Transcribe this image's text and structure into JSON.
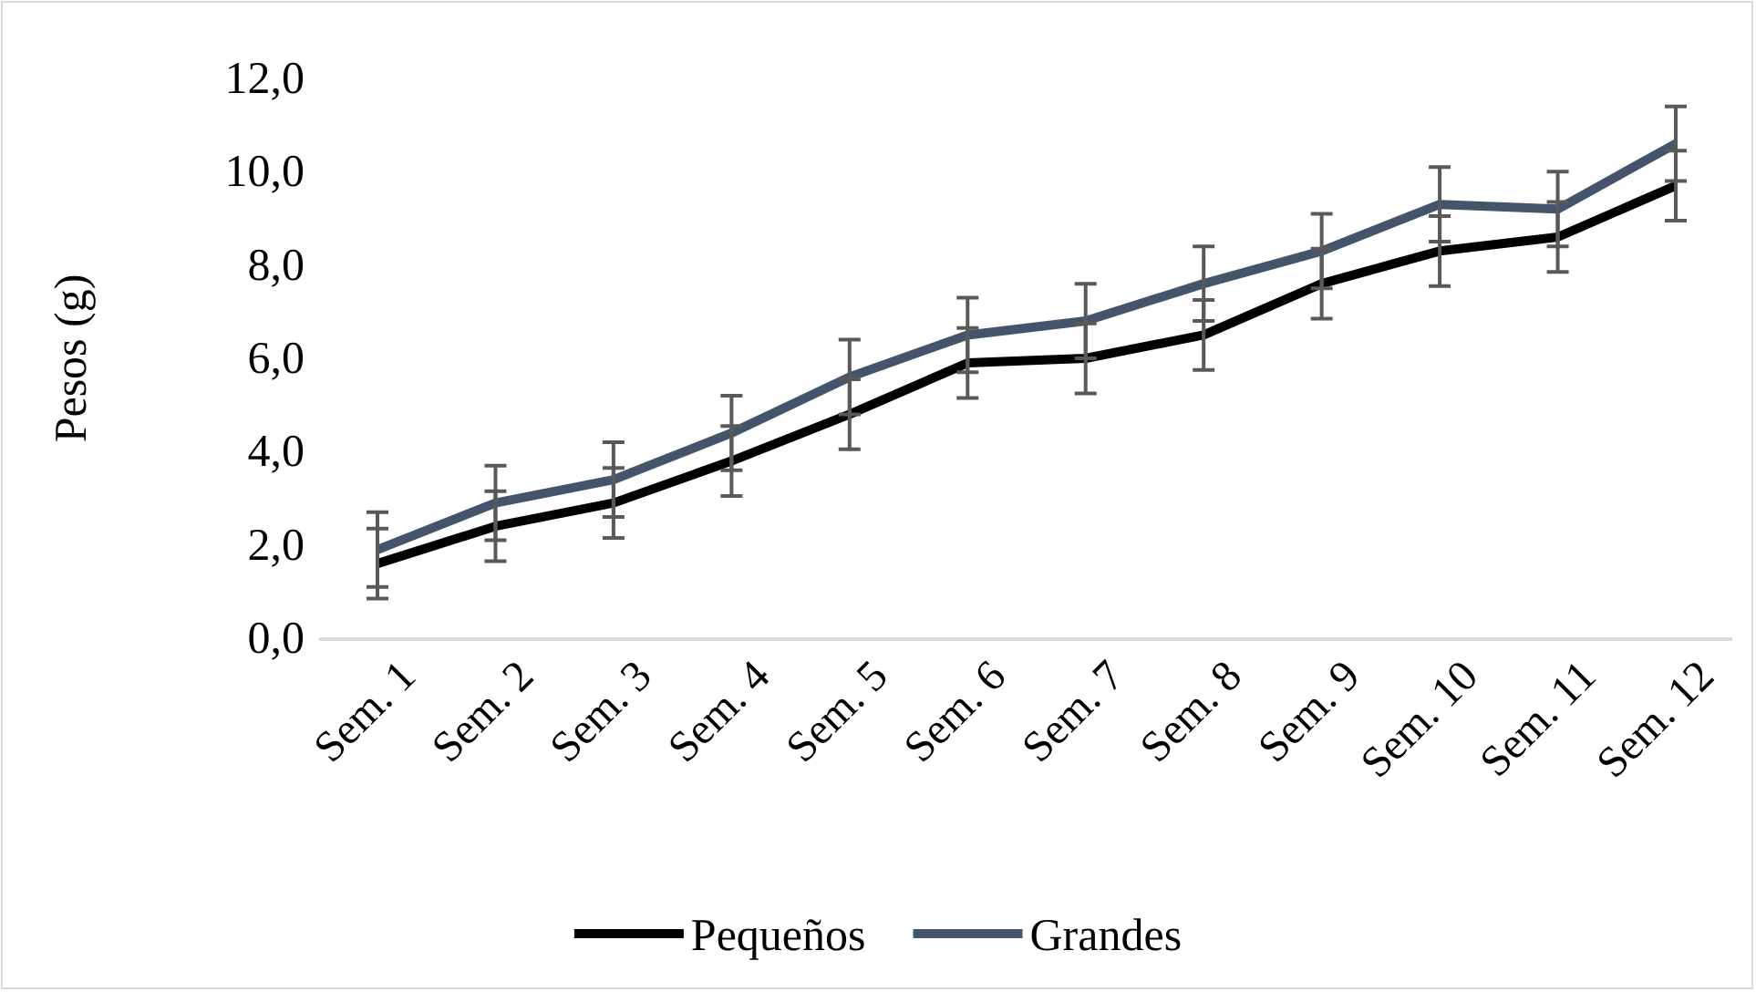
{
  "chart_data": {
    "type": "line",
    "ylabel": "Pesos (g)",
    "categories": [
      "Sem. 1",
      "Sem. 2",
      "Sem. 3",
      "Sem. 4",
      "Sem. 5",
      "Sem. 6",
      "Sem. 7",
      "Sem. 8",
      "Sem. 9",
      "Sem. 10",
      "Sem. 11",
      "Sem. 12"
    ],
    "series": [
      {
        "name": "Pequeños",
        "color": "#000000",
        "values": [
          1.6,
          2.4,
          2.9,
          3.8,
          4.8,
          5.9,
          6.0,
          6.5,
          7.6,
          8.3,
          8.6,
          9.7
        ],
        "errors": [
          0.75,
          0.75,
          0.75,
          0.75,
          0.75,
          0.75,
          0.75,
          0.75,
          0.75,
          0.75,
          0.75,
          0.75
        ]
      },
      {
        "name": "Grandes",
        "color": "#44546a",
        "values": [
          1.9,
          2.9,
          3.4,
          4.4,
          5.6,
          6.5,
          6.8,
          7.6,
          8.3,
          9.3,
          9.2,
          10.6
        ],
        "errors": [
          0.8,
          0.8,
          0.8,
          0.8,
          0.8,
          0.8,
          0.8,
          0.8,
          0.8,
          0.8,
          0.8,
          0.8
        ]
      }
    ],
    "ylim": [
      0,
      12
    ],
    "yticks": [
      {
        "value": 0,
        "label": "0,0"
      },
      {
        "value": 2,
        "label": "2,0"
      },
      {
        "value": 4,
        "label": "4,0"
      },
      {
        "value": 6,
        "label": "6,0"
      },
      {
        "value": 8,
        "label": "8,0"
      },
      {
        "value": 10,
        "label": "10,0"
      },
      {
        "value": 12,
        "label": "12,0"
      }
    ],
    "grid": false,
    "legend": "bottom",
    "marker": "none",
    "line_style": "solid"
  }
}
